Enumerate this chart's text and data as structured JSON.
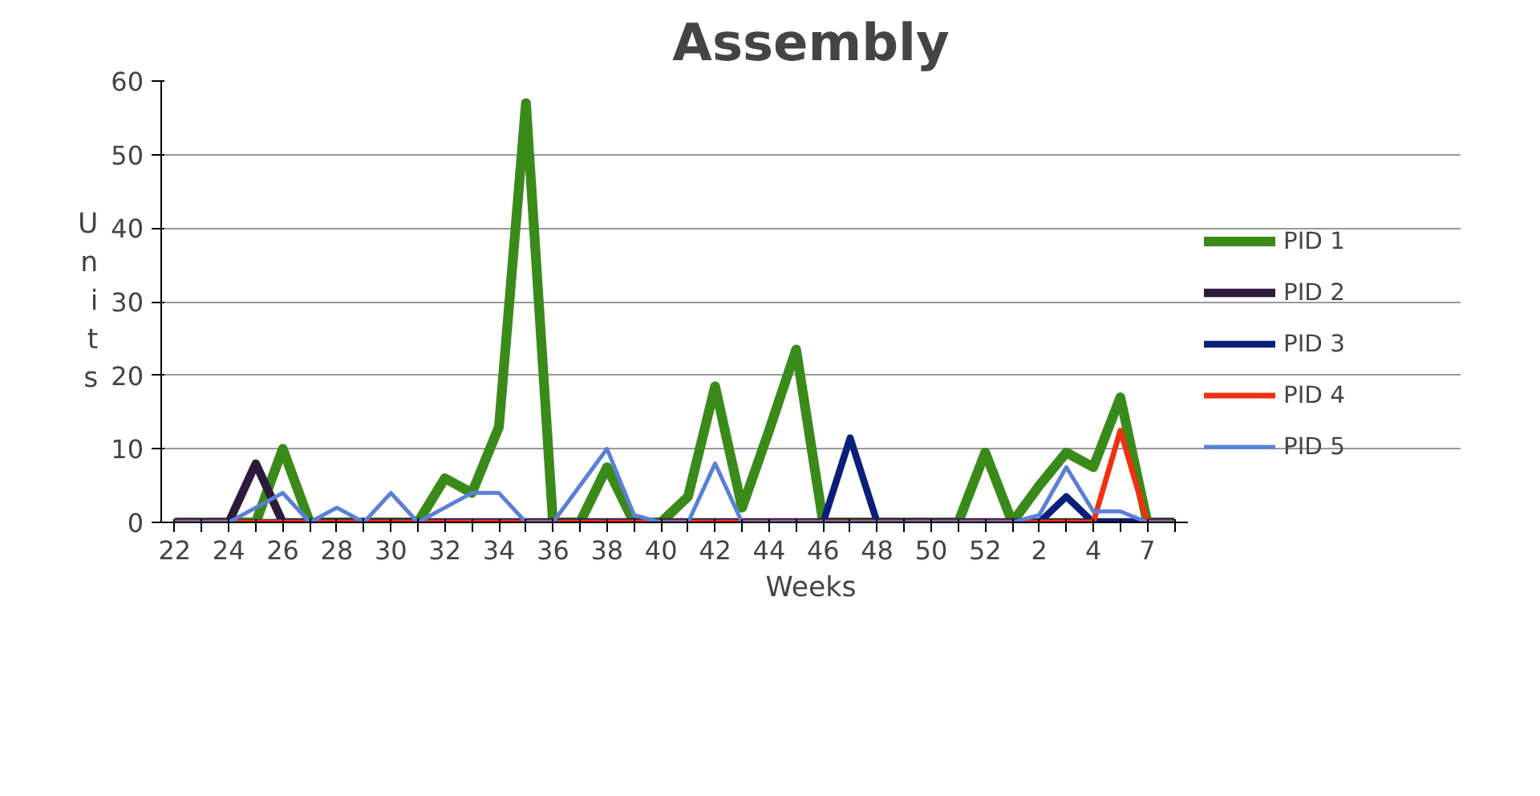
{
  "chart_data": {
    "type": "line",
    "title": "Assembly",
    "xlabel": "Weeks",
    "ylabel": "Units",
    "categories": [
      "22",
      null,
      "24",
      null,
      "26",
      null,
      "28",
      null,
      "30",
      null,
      "32",
      null,
      "34",
      null,
      "36",
      null,
      "38",
      null,
      "40",
      null,
      "42",
      null,
      "44",
      null,
      "46",
      null,
      "48",
      null,
      "50",
      null,
      "52",
      null,
      "2",
      null,
      "4",
      null,
      "7",
      null
    ],
    "ylim": [
      0,
      60
    ],
    "yticks": [
      0,
      10,
      20,
      30,
      40,
      50,
      60
    ],
    "grid": "y",
    "legend": "right",
    "line_style": "solid",
    "marker": "none",
    "series": [
      {
        "name": "PID 1",
        "color": "#3a8a1a",
        "values": [
          0,
          0,
          0,
          0,
          10,
          0,
          0,
          0,
          0,
          0,
          6,
          4,
          13,
          57,
          0,
          0,
          7.5,
          0,
          0,
          3.5,
          18.5,
          2,
          12.5,
          23.5,
          0,
          0,
          0,
          0,
          0,
          0,
          9.5,
          0,
          5,
          9.5,
          7.5,
          17,
          0,
          0
        ]
      },
      {
        "name": "PID 2",
        "color": "#2e1a3a",
        "values": [
          0,
          0,
          0,
          8,
          0,
          0,
          0,
          0,
          0,
          0,
          0,
          0,
          0,
          0,
          0,
          0,
          0,
          0,
          0,
          0,
          0,
          0,
          0,
          0,
          0,
          0,
          0,
          0,
          0,
          0,
          0,
          0,
          0,
          0,
          0,
          0,
          0,
          0
        ]
      },
      {
        "name": "PID 3",
        "color": "#0a1f7a",
        "values": [
          0,
          0,
          0,
          0,
          0,
          0,
          0,
          0,
          0,
          0,
          0,
          0,
          0,
          0,
          0,
          0,
          0,
          0,
          0,
          0,
          0,
          0,
          0,
          0,
          0,
          11.5,
          0,
          0,
          0,
          0,
          0,
          0,
          0,
          3.5,
          0,
          0,
          0,
          0
        ]
      },
      {
        "name": "PID 4",
        "color": "#f03010",
        "values": [
          0,
          0,
          0,
          0,
          0,
          0,
          0,
          0,
          0,
          0,
          0,
          0,
          0,
          0,
          0,
          0,
          0,
          0,
          0,
          0,
          0,
          0,
          0,
          0,
          0,
          0,
          0,
          0,
          0,
          0,
          0,
          0,
          0,
          0,
          0,
          12.5,
          0,
          0
        ]
      },
      {
        "name": "PID 5",
        "color": "#5b7fd6",
        "values": [
          0,
          0,
          0,
          2,
          4,
          0,
          2,
          0,
          4,
          0,
          2,
          4,
          4,
          0,
          0,
          5,
          10,
          1,
          0,
          0,
          8,
          0,
          0,
          0,
          0,
          0,
          0,
          0,
          0,
          0,
          0,
          0,
          1,
          7.5,
          1.5,
          1.5,
          0,
          0
        ]
      }
    ]
  }
}
